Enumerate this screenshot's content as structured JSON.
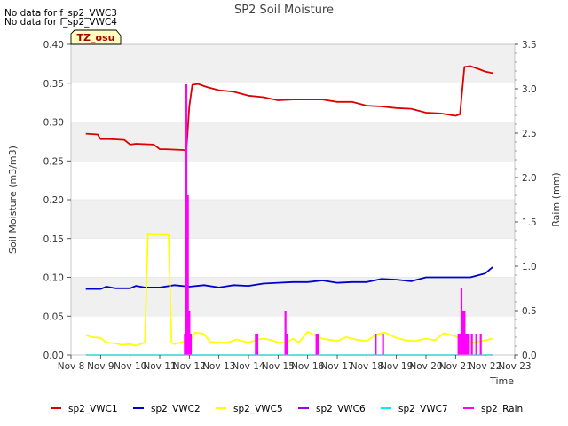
{
  "chart_data": {
    "type": "line",
    "title": "SP2 Soil Moisture",
    "notes": [
      "No data for f_sp2_VWC3",
      "No data for f_sp2_VWC4"
    ],
    "badge": "TZ_osu",
    "xlabel": "Time",
    "ylabel": "Soil Moisture (m3/m3)",
    "y2label": "Raim (mm)",
    "xlim": [
      8,
      23
    ],
    "ylim": [
      0,
      0.4
    ],
    "y2lim": [
      0,
      3.5
    ],
    "x_ticks": [
      "Nov 8",
      "Nov 9",
      "Nov 10",
      "Nov 11",
      "Nov 12",
      "Nov 13",
      "Nov 14",
      "Nov 15",
      "Nov 16",
      "Nov 17",
      "Nov 18",
      "Nov 19",
      "Nov 20",
      "Nov 21",
      "Nov 22",
      "Nov 23"
    ],
    "y_ticks": [
      "0.00",
      "0.05",
      "0.10",
      "0.15",
      "0.20",
      "0.25",
      "0.30",
      "0.35",
      "0.40"
    ],
    "y2_ticks": [
      "0.0",
      "0.5",
      "1.0",
      "1.5",
      "2.0",
      "2.5",
      "3.0",
      "3.5"
    ],
    "grid": "horizontal bands",
    "legend_position": "bottom",
    "series": [
      {
        "name": "sp2_VWC1",
        "color": "#dd0000",
        "axis": "left",
        "x": [
          8.5,
          8.9,
          9.0,
          9.3,
          9.8,
          10.0,
          10.2,
          10.8,
          11.0,
          11.2,
          11.8,
          11.9,
          12.0,
          12.1,
          12.3,
          12.6,
          13.0,
          13.5,
          14.0,
          14.5,
          15.0,
          15.5,
          16.0,
          16.5,
          17.0,
          17.5,
          18.0,
          18.5,
          19.0,
          19.5,
          20.0,
          20.5,
          21.0,
          21.15,
          21.3,
          21.5,
          21.8,
          22.0,
          22.25
        ],
        "y": [
          0.285,
          0.284,
          0.278,
          0.278,
          0.277,
          0.271,
          0.272,
          0.271,
          0.265,
          0.265,
          0.264,
          0.263,
          0.32,
          0.348,
          0.349,
          0.345,
          0.341,
          0.339,
          0.334,
          0.332,
          0.328,
          0.329,
          0.329,
          0.329,
          0.326,
          0.326,
          0.321,
          0.32,
          0.318,
          0.317,
          0.312,
          0.311,
          0.308,
          0.31,
          0.371,
          0.372,
          0.368,
          0.365,
          0.363
        ]
      },
      {
        "name": "sp2_VWC2",
        "color": "#0000cc",
        "axis": "left",
        "x": [
          8.5,
          9.0,
          9.2,
          9.5,
          10.0,
          10.2,
          10.5,
          11.0,
          11.5,
          12.0,
          12.5,
          13.0,
          13.5,
          14.0,
          14.5,
          15.0,
          15.5,
          16.0,
          16.5,
          17.0,
          17.5,
          18.0,
          18.5,
          19.0,
          19.5,
          20.0,
          20.5,
          21.0,
          21.5,
          22.0,
          22.25
        ],
        "y": [
          0.085,
          0.085,
          0.088,
          0.086,
          0.086,
          0.089,
          0.087,
          0.087,
          0.09,
          0.088,
          0.09,
          0.087,
          0.09,
          0.089,
          0.092,
          0.093,
          0.094,
          0.094,
          0.096,
          0.093,
          0.094,
          0.094,
          0.098,
          0.097,
          0.095,
          0.1,
          0.1,
          0.1,
          0.1,
          0.105,
          0.113
        ]
      },
      {
        "name": "sp2_VWC5",
        "color": "#ffff00",
        "axis": "left",
        "x": [
          8.5,
          8.7,
          9.0,
          9.2,
          9.5,
          9.7,
          10.0,
          10.2,
          10.5,
          10.6,
          10.7,
          11.0,
          11.2,
          11.3,
          11.4,
          11.5,
          11.8,
          12.0,
          12.2,
          12.5,
          12.7,
          13.0,
          13.3,
          13.6,
          14.0,
          14.3,
          14.5,
          14.8,
          15.0,
          15.3,
          15.5,
          15.7,
          16.0,
          16.2,
          16.5,
          17.0,
          17.3,
          17.6,
          18.0,
          18.3,
          18.6,
          19.0,
          19.3,
          19.6,
          20.0,
          20.3,
          20.6,
          21.0,
          21.3,
          21.6,
          22.0,
          22.25
        ],
        "y": [
          0.026,
          0.023,
          0.022,
          0.016,
          0.015,
          0.013,
          0.014,
          0.012,
          0.016,
          0.156,
          0.155,
          0.155,
          0.155,
          0.155,
          0.016,
          0.014,
          0.017,
          0.015,
          0.029,
          0.027,
          0.017,
          0.016,
          0.016,
          0.02,
          0.016,
          0.02,
          0.021,
          0.019,
          0.016,
          0.016,
          0.021,
          0.016,
          0.03,
          0.026,
          0.021,
          0.018,
          0.023,
          0.02,
          0.018,
          0.026,
          0.029,
          0.022,
          0.019,
          0.018,
          0.021,
          0.019,
          0.028,
          0.024,
          0.017,
          0.016,
          0.019,
          0.021
        ]
      },
      {
        "name": "sp2_VWC6",
        "color": "#9900ee",
        "axis": "left",
        "x": [],
        "y": []
      },
      {
        "name": "sp2_VWC7",
        "color": "#00eeee",
        "axis": "left",
        "x": [
          8.5,
          22.25
        ],
        "y": [
          0.0,
          0.0
        ]
      },
      {
        "name": "sp2_Rain",
        "color": "#ff00ff",
        "axis": "right",
        "x": [
          11.85,
          11.9,
          11.95,
          12.0,
          12.05,
          14.25,
          14.3,
          15.25,
          15.3,
          16.3,
          16.35,
          18.3,
          18.55,
          21.1,
          21.15,
          21.2,
          21.25,
          21.3,
          21.35,
          21.4,
          21.45,
          21.55,
          21.7,
          21.85
        ],
        "y": [
          0.24,
          3.05,
          1.8,
          0.5,
          0.24,
          0.24,
          0.24,
          0.5,
          0.24,
          0.24,
          0.24,
          0.24,
          0.24,
          0.24,
          0.24,
          0.75,
          0.5,
          0.5,
          0.24,
          0.24,
          0.24,
          0.24,
          0.24,
          0.24
        ]
      }
    ]
  }
}
